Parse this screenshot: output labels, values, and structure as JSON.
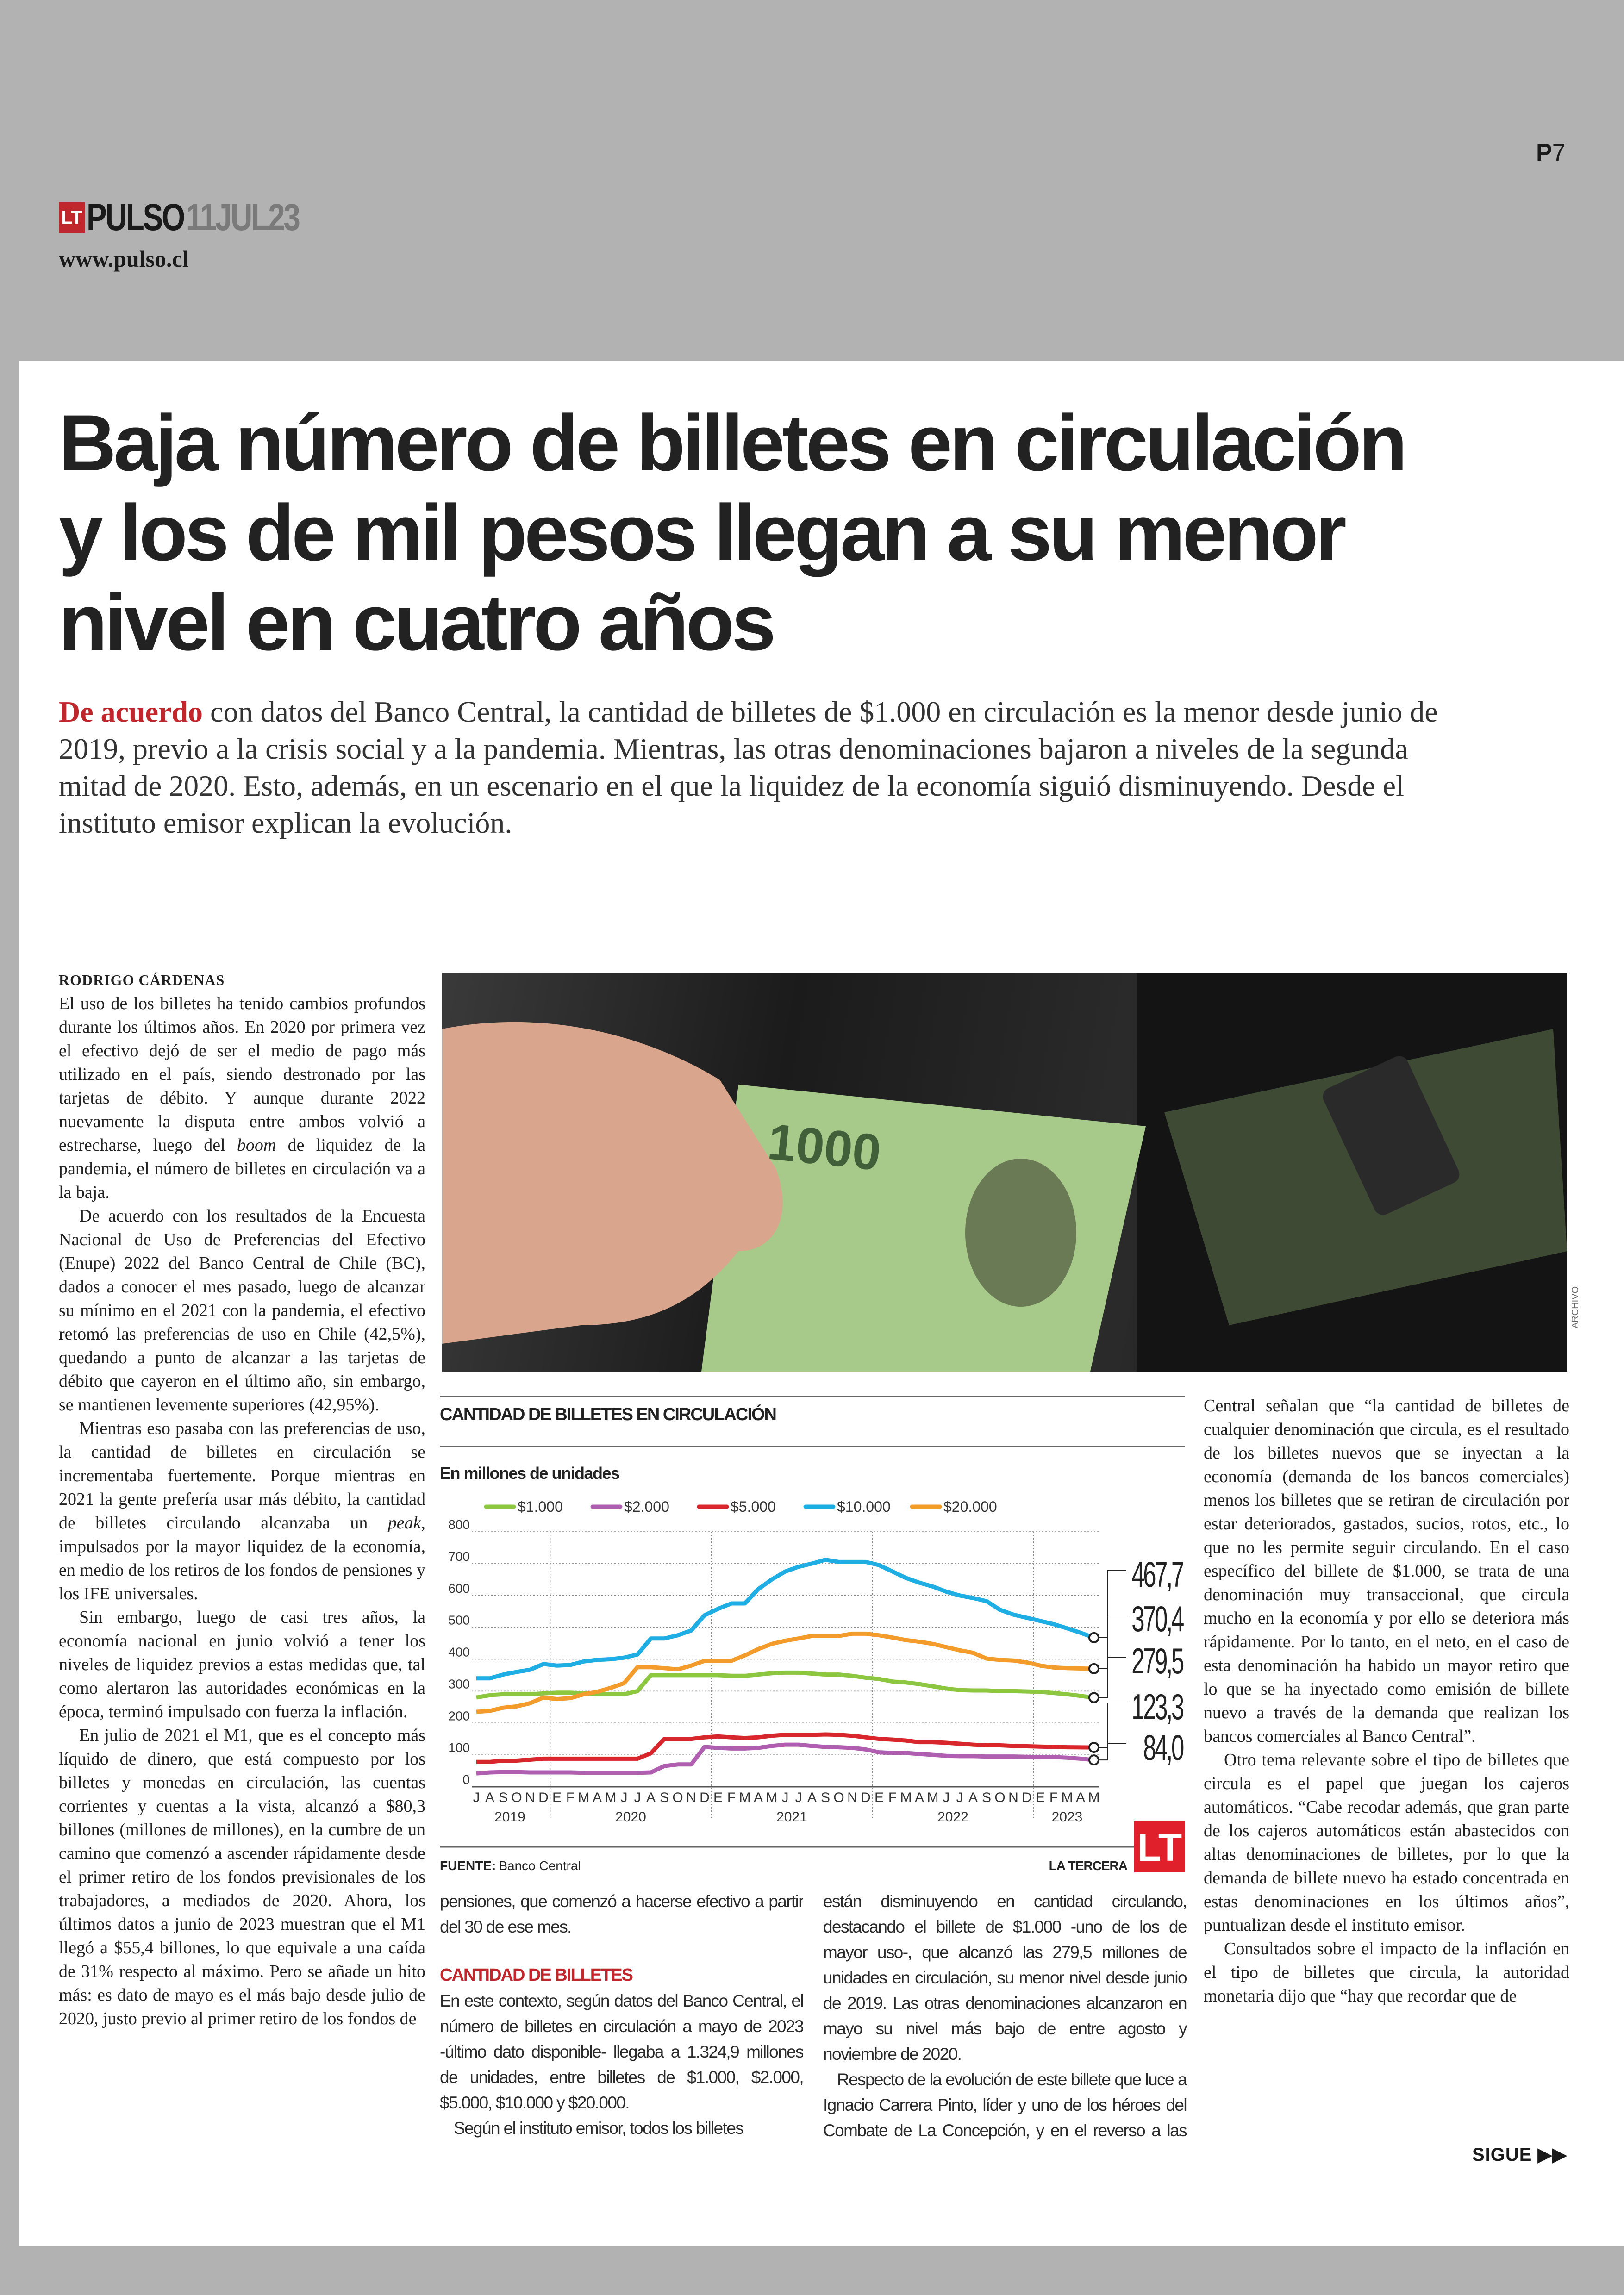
{
  "header": {
    "logo_letters": "LT",
    "section": "PULSO",
    "date": "11JUL23",
    "website": "www.pulso.cl",
    "page_prefix": "P",
    "page_number": "7"
  },
  "article": {
    "headline": [
      "Baja número de billetes en circulación",
      "y los de mil pesos llegan a su menor",
      "nivel en cuatro años"
    ],
    "deck_lead": "De acuerdo",
    "deck": " con datos del Banco Central, la cantidad de billetes de $1.000 en circulación es la menor desde junio de 2019, previo a la crisis social y a la pandemia. Mientras, las otras denominaciones bajaron a niveles de la segunda mitad de 2020. Esto, además, en un escenario en el que la liquidez de la economía siguió disminuyendo. Desde el instituto emisor explican la evolución.",
    "byline": "RODRIGO CÁRDENAS",
    "photo_credit": "ARCHIVO",
    "col1": {
      "p1a": "El uso de los billetes ha tenido cambios profundos durante los últimos años. En 2020 por primera vez el efectivo dejó de ser el medio de pago más utilizado en el país, siendo destronado por las tarjetas de débito. Y aunque durante 2022 nuevamente la disputa entre ambos volvió a estrecharse, luego del ",
      "p1_em": "boom",
      "p1b": " de liquidez de la pandemia, el número de billetes en circulación va a la baja.",
      "p2": "De acuerdo con los resultados de la Encuesta Nacional de Uso de Preferencias del Efectivo (Enupe) 2022 del Banco Central de Chile (BC), dados a conocer el mes pasado, luego de alcanzar su mínimo en el 2021 con la pandemia, el efectivo retomó las preferencias de uso en Chile (42,5%), quedando a punto de alcanzar a las tarjetas de débito que cayeron en el último año, sin embargo, se mantienen levemente superiores (42,95%).",
      "p3a": "Mientras eso pasaba con las preferencias de uso, la cantidad de billetes en circulación se incrementaba fuertemente. Porque mientras en 2021 la gente prefería usar más débito, la cantidad de billetes circulando alcanzaba un ",
      "p3_em": "peak",
      "p3b": ", impulsados por la mayor liquidez de la economía, en medio de los retiros de los fondos de pensiones y los IFE universales.",
      "p4": "Sin embargo, luego de casi tres años, la economía nacional en junio volvió a tener los niveles de liquidez previos a estas medidas que, tal como alertaron las autoridades económicas en la época, terminó impulsado con fuerza la inflación.",
      "p5": "En julio de 2021 el M1, que es el concepto más líquido de dinero, que está compuesto por los billetes y monedas en circulación, las cuentas corrientes y cuentas a la vista, alcanzó a $80,3 billones (millones de millones), en la cumbre de un camino que comenzó a ascender rápidamente desde el primer retiro de los fondos previsionales de los trabajadores, a mediados de 2020. Ahora, los últimos datos a junio de 2023 muestran que el M1 llegó a $55,4 billones, lo que equivale a una caída de 31% respecto al máximo. Pero se añade un hito más: es dato de mayo es el más bajo desde julio de 2020, justo previo al primer retiro de los fondos de"
    },
    "col2": {
      "p1": "pensiones, que comenzó a hacerse efectivo a partir del 30 de ese mes.",
      "subhead": "CANTIDAD DE BILLETES",
      "p2": "En este contexto, según datos del Banco Central, el número de billetes en circulación a mayo de 2023 -último dato disponible- llegaba a 1.324,9 millones de unidades, entre billetes de $1.000, $2.000, $5.000, $10.000 y $20.000.",
      "p3": "Según el instituto emisor, todos los billetes"
    },
    "col3": {
      "p1": "están disminuyendo en cantidad circulando, destacando el billete de $1.000 -uno de los de mayor uso-, que alcanzó las 279,5 millones de unidades en circulación, su menor nivel desde junio de 2019. Las otras denominaciones alcanzaron en mayo su nivel más bajo de entre agosto y noviembre de 2020.",
      "p2": "Respecto de la evolución de este billete que luce a Ignacio Carrera Pinto, líder y uno de los héroes del Combate de La Concepción, y en el reverso a las Torres del Paine, desde el Banco"
    },
    "col4": {
      "p1": "Central señalan que “la cantidad de billetes de cualquier denominación que circula, es el resultado de los billetes nuevos que se inyectan a la economía (demanda de los bancos comerciales) menos los billetes que se retiran de circulación por estar deteriorados, gastados, sucios, rotos, etc., lo que no les permite seguir circulando. En el caso específico del billete de $1.000, se trata de una denominación muy transaccional, que circula mucho en la economía y por ello se deteriora más rápidamente. Por lo tanto, en el neto, en el caso de esta denominación ha habido un mayor retiro que lo que se ha inyectado como emisión de billete nuevo a través de la demanda que realizan los bancos comerciales al Banco Central”.",
      "p2": "Otro tema relevante sobre el tipo de billetes que circula es el papel que juegan los cajeros automáticos. “Cabe recodar además, que gran parte de los cajeros automáticos están abastecidos con altas denominaciones de billetes, por lo que la demanda de billete nuevo ha estado concentrada en estas denominaciones en los últimos años”, puntualizan desde el instituto emisor.",
      "p3": "Consultados sobre el impacto de la inflación en el tipo de billetes que circula, la autoridad monetaria dijo que “hay que recordar que de"
    },
    "continue_label": "SIGUE ▶▶"
  },
  "chart_data": {
    "type": "line",
    "title": "CANTIDAD DE BILLETES EN CIRCULACIÓN",
    "subtitle": "En millones de unidades",
    "ylim": [
      0,
      800
    ],
    "yticks": [
      0,
      100,
      200,
      300,
      400,
      500,
      600,
      700,
      800
    ],
    "grid": true,
    "legend_position": "top",
    "month_labels": [
      "J",
      "A",
      "S",
      "O",
      "N",
      "D",
      "E",
      "F",
      "M",
      "A",
      "M",
      "J",
      "J",
      "A",
      "S",
      "O",
      "N",
      "D",
      "E",
      "F",
      "M",
      "A",
      "M",
      "J",
      "J",
      "A",
      "S",
      "O",
      "N",
      "D",
      "E",
      "F",
      "M",
      "A",
      "M",
      "J",
      "J",
      "A",
      "S",
      "O",
      "N",
      "D",
      "E",
      "F",
      "M",
      "A",
      "M"
    ],
    "years": [
      "2019",
      "2020",
      "2021",
      "2022",
      "2023"
    ],
    "series": [
      {
        "name": "$1.000",
        "color": "#8dc63f",
        "end_label": "279,5",
        "values": [
          280,
          287,
          290,
          290,
          290,
          293,
          295,
          295,
          293,
          290,
          290,
          290,
          300,
          350,
          350,
          350,
          350,
          350,
          350,
          348,
          348,
          352,
          356,
          358,
          358,
          355,
          352,
          352,
          348,
          342,
          338,
          330,
          327,
          322,
          315,
          308,
          303,
          302,
          302,
          300,
          300,
          299,
          298,
          294,
          290,
          285,
          279.5
        ]
      },
      {
        "name": "$2.000",
        "color": "#b05fb0",
        "end_label": "84,0",
        "values": [
          42,
          45,
          46,
          46,
          45,
          45,
          45,
          45,
          44,
          44,
          44,
          44,
          44,
          45,
          65,
          70,
          70,
          125,
          122,
          120,
          120,
          122,
          128,
          132,
          132,
          128,
          125,
          124,
          122,
          117,
          108,
          106,
          106,
          103,
          100,
          97,
          96,
          96,
          95,
          95,
          95,
          94,
          93,
          93,
          91,
          88,
          84.0
        ]
      },
      {
        "name": "$5.000",
        "color": "#d7262c",
        "end_label": "123,3",
        "values": [
          78,
          78,
          82,
          82,
          85,
          88,
          88,
          88,
          88,
          88,
          88,
          88,
          88,
          105,
          150,
          150,
          150,
          155,
          158,
          155,
          153,
          155,
          160,
          163,
          163,
          163,
          164,
          163,
          160,
          155,
          150,
          148,
          145,
          140,
          140,
          138,
          135,
          132,
          130,
          130,
          128,
          127,
          126,
          125,
          124,
          123.5,
          123.3
        ]
      },
      {
        "name": "$10.000",
        "color": "#1eaee3",
        "end_label": "467,7",
        "values": [
          340,
          340,
          352,
          360,
          367,
          385,
          380,
          382,
          393,
          398,
          400,
          405,
          415,
          465,
          465,
          475,
          490,
          538,
          558,
          575,
          575,
          620,
          650,
          675,
          690,
          700,
          712,
          705,
          705,
          705,
          695,
          675,
          655,
          640,
          628,
          612,
          600,
          592,
          582,
          555,
          540,
          530,
          520,
          510,
          497,
          483,
          467.7
        ]
      },
      {
        "name": "$20.000",
        "color": "#f39c2b",
        "end_label": "370,4",
        "values": [
          235,
          238,
          248,
          252,
          262,
          280,
          275,
          278,
          290,
          298,
          310,
          325,
          375,
          375,
          372,
          368,
          380,
          395,
          395,
          395,
          412,
          432,
          448,
          458,
          465,
          473,
          473,
          473,
          480,
          480,
          475,
          468,
          460,
          455,
          448,
          438,
          428,
          420,
          402,
          398,
          396,
          390,
          380,
          374,
          372,
          371,
          370.4
        ]
      }
    ],
    "source_label": "FUENTE:",
    "source": "Banco Central",
    "publisher": "LA TERCERA",
    "publisher_logo": "LT"
  }
}
